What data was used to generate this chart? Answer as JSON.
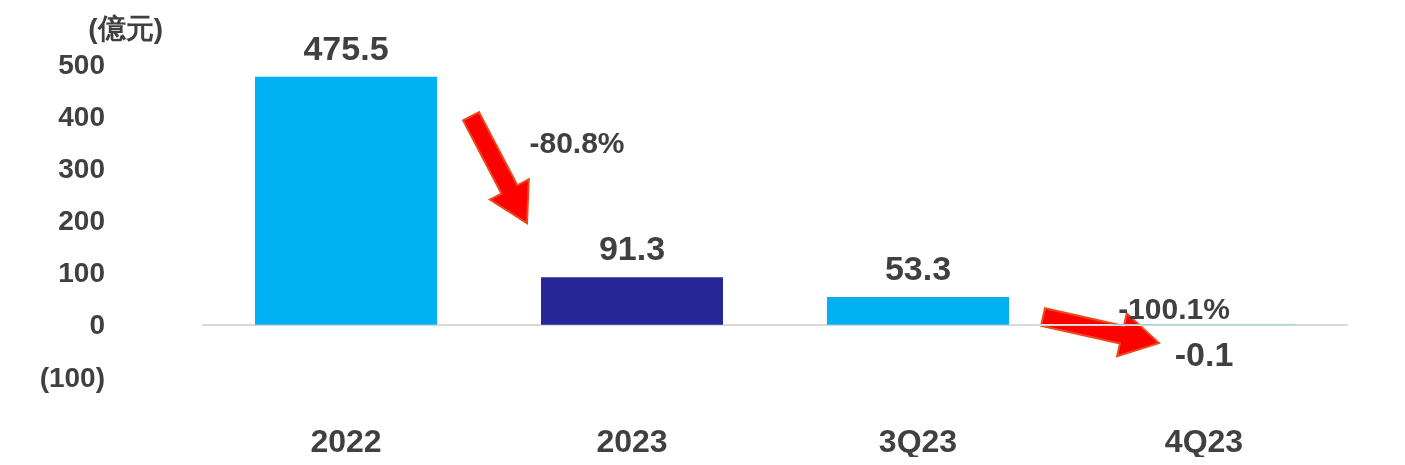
{
  "chart_data": {
    "type": "bar",
    "ylabel": "(億元)",
    "categories": [
      "2022",
      "2023",
      "3Q23",
      "4Q23"
    ],
    "values": [
      475.5,
      91.3,
      53.3,
      -0.1
    ],
    "colors": [
      "#00b0f0",
      "#262699",
      "#00b0f0",
      "#00b0f0"
    ],
    "ylim": [
      -100,
      500
    ],
    "yticks": [
      {
        "value": -100,
        "label": "(100)"
      },
      0,
      100,
      200,
      300,
      400,
      500
    ],
    "data_labels": true,
    "annotations": [
      "-80.8%",
      "-100.1%"
    ]
  }
}
